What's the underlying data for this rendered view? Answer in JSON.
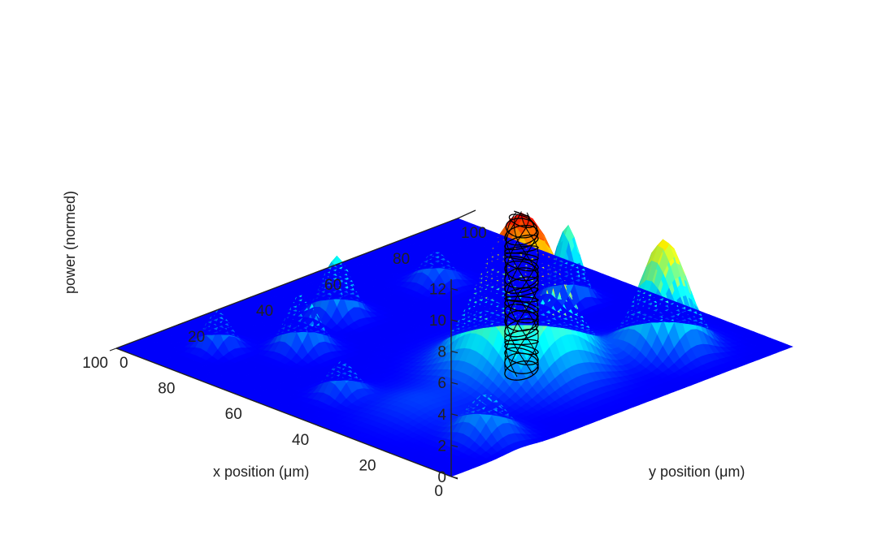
{
  "chart_data": {
    "type": "surface",
    "title": "",
    "xlabel": "x position (μm)",
    "ylabel": "y position (μm)",
    "zlabel": "power (normed)",
    "xlim": [
      0,
      100
    ],
    "ylim": [
      0,
      100
    ],
    "zlim": [
      0,
      12
    ],
    "x_ticks": [
      "0",
      "20",
      "40",
      "60",
      "80",
      "100"
    ],
    "y_ticks": [
      "0",
      "20",
      "40",
      "60",
      "80",
      "100"
    ],
    "z_ticks": [
      "0",
      "2",
      "4",
      "6",
      "8",
      "10",
      "12"
    ],
    "colormap": "jet",
    "grid": false,
    "legend": "none",
    "peaks": [
      {
        "x": 31,
        "y": 51,
        "height": 10.0,
        "width": 8.5
      },
      {
        "x": 18,
        "y": 80,
        "height": 7.0,
        "width": 5.0
      },
      {
        "x": 10,
        "y": 20,
        "height": 2.7,
        "width": 4.2
      },
      {
        "x": 52,
        "y": 85,
        "height": 4.8,
        "width": 2.6
      },
      {
        "x": 48,
        "y": 15,
        "height": 2.1,
        "width": 3.0
      },
      {
        "x": 72,
        "y": 27,
        "height": 3.6,
        "width": 3.2
      },
      {
        "x": 80,
        "y": 45,
        "height": 3.8,
        "width": 3.0
      },
      {
        "x": 85,
        "y": 15,
        "height": 2.4,
        "width": 2.6
      },
      {
        "x": 78,
        "y": 72,
        "height": 2.0,
        "width": 3.0
      },
      {
        "x": 30,
        "y": 20,
        "height": 0.8,
        "width": 8.0
      }
    ],
    "beam_trace": {
      "x": 31,
      "y": 51,
      "z_bottom": 0,
      "z_top": 10,
      "radius": 3.5
    }
  }
}
